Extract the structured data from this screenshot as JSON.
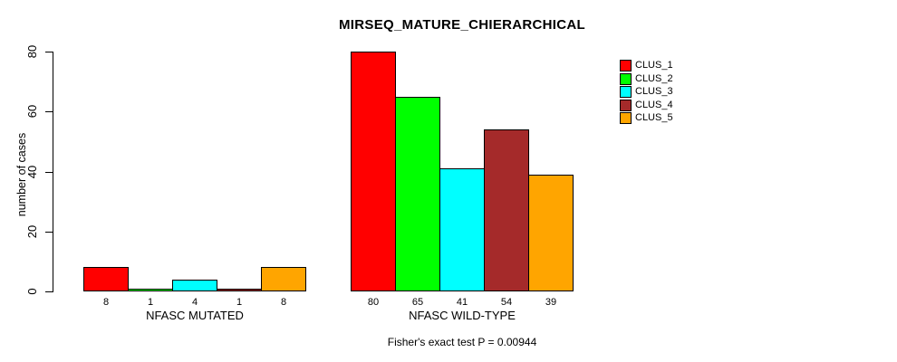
{
  "chart_data": {
    "type": "bar",
    "title": "MIRSEQ_MATURE_CHIERARCHICAL",
    "xlabel": "",
    "ylabel": "number of cases",
    "ylim": [
      0,
      80
    ],
    "yticks": [
      0,
      20,
      40,
      60,
      80
    ],
    "grid": false,
    "legend_position": "top-right",
    "categories": [
      "NFASC MUTATED",
      "NFASC WILD-TYPE"
    ],
    "series": [
      {
        "name": "CLUS_1",
        "color": "#FF0000",
        "values": [
          8,
          80
        ]
      },
      {
        "name": "CLUS_2",
        "color": "#00FF00",
        "values": [
          1,
          65
        ]
      },
      {
        "name": "CLUS_3",
        "color": "#00FFFF",
        "values": [
          4,
          41
        ]
      },
      {
        "name": "CLUS_4",
        "color": "#A52A2A",
        "values": [
          1,
          54
        ]
      },
      {
        "name": "CLUS_5",
        "color": "#FFA500",
        "values": [
          8,
          39
        ]
      }
    ],
    "groups": [
      {
        "label": "NFASC MUTATED",
        "values": [
          8,
          1,
          4,
          1,
          8
        ]
      },
      {
        "label": "NFASC WILD-TYPE",
        "values": [
          80,
          65,
          41,
          54,
          39
        ]
      }
    ],
    "bar_value_labels_shown": true,
    "annotation": "Fisher's exact test P = 0.00944"
  }
}
